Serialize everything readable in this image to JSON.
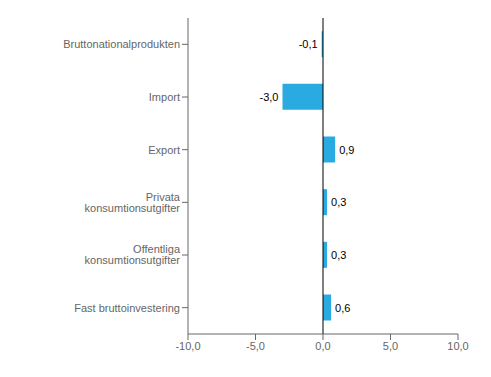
{
  "chart_data": {
    "type": "bar",
    "orientation": "horizontal",
    "categories": [
      "Fast bruttoinvestering",
      "Offentliga konsumtionsutgifter",
      "Privata konsumtionsutgifter",
      "Export",
      "Import",
      "Bruttonationalprodukten"
    ],
    "values": [
      0.6,
      0.3,
      0.3,
      0.9,
      -3.0,
      -0.1
    ],
    "value_labels": [
      "0,6",
      "0,3",
      "0,3",
      "0,9",
      "-3,0",
      "-0,1"
    ],
    "data_labels": true,
    "color": "#29ABE2",
    "xlim": [
      -10.0,
      10.0
    ],
    "xticks": [
      {
        "value": -10.0,
        "label": "-10,0"
      },
      {
        "value": -5.0,
        "label": "-5,0"
      },
      {
        "value": 0.0,
        "label": "0,0"
      },
      {
        "value": 5.0,
        "label": "5,0"
      },
      {
        "value": 10.0,
        "label": "10,0"
      }
    ],
    "grid": false
  }
}
